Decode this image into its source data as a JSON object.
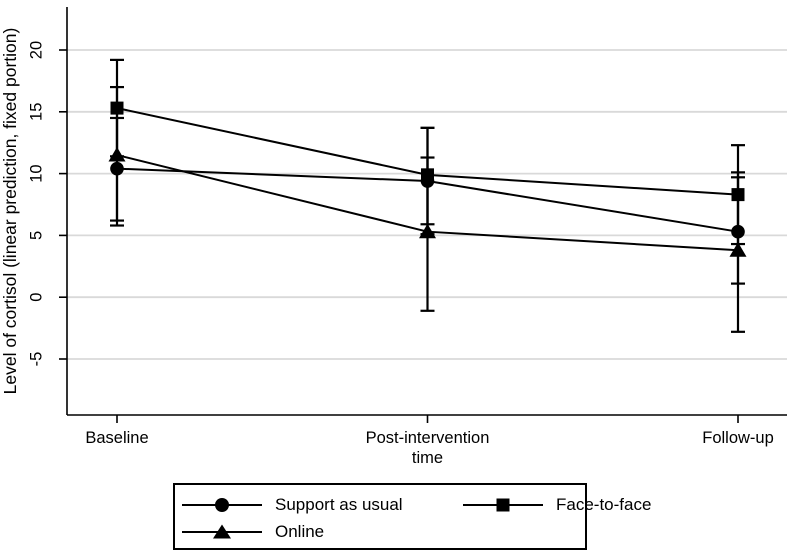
{
  "chart_data": {
    "type": "line",
    "title": "",
    "xlabel": "time",
    "ylabel": "Level of cortisol (linear prediction, fixed portion)",
    "categories": [
      "Baseline",
      "Post-intervention",
      "Follow-up"
    ],
    "yticks": [
      -5,
      0,
      5,
      10,
      15,
      20
    ],
    "ylim": [
      -9.6,
      23.5
    ],
    "grid": "horizontal-only",
    "legend_position": "bottom",
    "error_bars": "95% CI whiskers with caps",
    "colors": {
      "line": "#000000",
      "marker": "#000000",
      "grid": "#d9d9d9",
      "axis": "#000000",
      "background": "#ffffff"
    },
    "series": [
      {
        "name": "Support as usual",
        "marker": "circle",
        "values": [
          10.4,
          9.4,
          5.3
        ],
        "ci_low": [
          6.2,
          5.1,
          1.1
        ],
        "ci_high": [
          14.5,
          13.7,
          9.7
        ]
      },
      {
        "name": "Face-to-face",
        "marker": "square",
        "values": [
          15.3,
          9.9,
          8.3
        ],
        "ci_low": [
          11.4,
          5.9,
          4.3
        ],
        "ci_high": [
          19.2,
          13.7,
          12.3
        ]
      },
      {
        "name": "Online",
        "marker": "triangle",
        "values": [
          11.5,
          5.3,
          3.8
        ],
        "ci_low": [
          5.8,
          -1.1,
          -2.8
        ],
        "ci_high": [
          17.0,
          11.3,
          10.1
        ]
      }
    ]
  }
}
